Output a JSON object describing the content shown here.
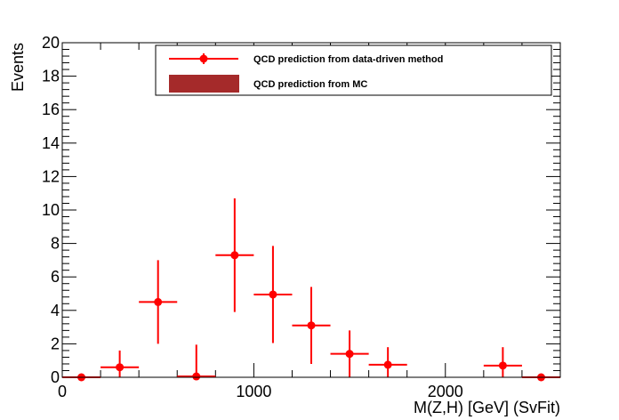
{
  "chart_data": {
    "type": "scatter",
    "title": "",
    "xlabel": "M(Z,H) [GeV] (SvFit)",
    "ylabel": "Events",
    "xlim": [
      0,
      2600
    ],
    "ylim": [
      0,
      20
    ],
    "x_tick_labels": [
      "0",
      "1000",
      "2000"
    ],
    "y_tick_labels": [
      "0",
      "2",
      "4",
      "6",
      "8",
      "10",
      "12",
      "14",
      "16",
      "18",
      "20"
    ],
    "legend_position": "top-right",
    "series": [
      {
        "name": "QCD prediction from data-driven method",
        "color": "#ff0000",
        "style": "points-with-error-bars",
        "bin_half_width": 100,
        "points": [
          {
            "x": 100,
            "y": 0.0,
            "err_low": 0.0,
            "err_high": 0.0
          },
          {
            "x": 300,
            "y": 0.6,
            "err_low": 0.6,
            "err_high": 1.0
          },
          {
            "x": 500,
            "y": 4.5,
            "err_low": 2.5,
            "err_high": 2.5
          },
          {
            "x": 700,
            "y": 0.05,
            "err_low": 0.05,
            "err_high": 1.9
          },
          {
            "x": 900,
            "y": 7.3,
            "err_low": 3.4,
            "err_high": 3.4
          },
          {
            "x": 1100,
            "y": 4.95,
            "err_low": 2.9,
            "err_high": 2.9
          },
          {
            "x": 1300,
            "y": 3.1,
            "err_low": 2.3,
            "err_high": 2.3
          },
          {
            "x": 1500,
            "y": 1.4,
            "err_low": 1.4,
            "err_high": 1.4
          },
          {
            "x": 1700,
            "y": 0.75,
            "err_low": 0.75,
            "err_high": 1.05
          },
          {
            "x": 2300,
            "y": 0.7,
            "err_low": 0.7,
            "err_high": 1.1
          },
          {
            "x": 2500,
            "y": 0.0,
            "err_low": 0.0,
            "err_high": 0.0
          }
        ]
      },
      {
        "name": "QCD prediction from MC",
        "color": "#a52a2a",
        "style": "filled-histogram",
        "points": []
      }
    ]
  }
}
